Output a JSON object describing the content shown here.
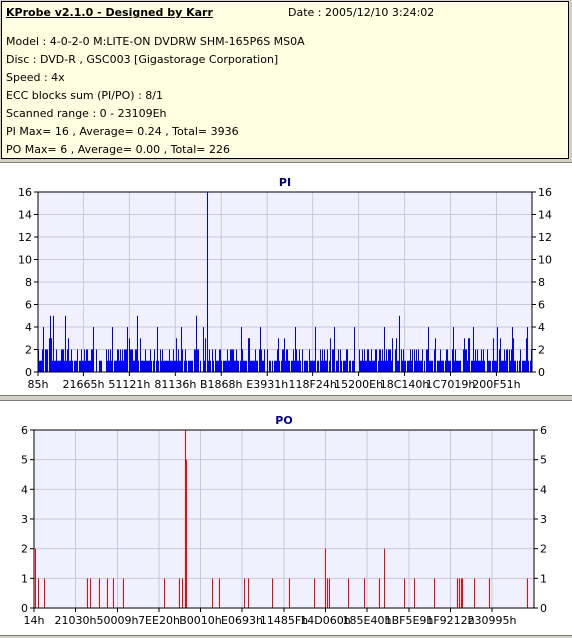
{
  "info": {
    "title": "KProbe v2.1.0 - Designed by Karr",
    "date": "Date : 2005/12/10 3:24:02",
    "lines": [
      "Model : 4-0-2-0 M:LITE-ON DVDRW SHM-165P6S MS0A",
      "Disc : DVD-R , GSC003 [Gigastorage Corporation]",
      "Speed : 4x",
      "ECC blocks sum (PI/PO) : 8/1",
      "Scanned range : 0 - 23109Eh",
      "PI Max= 16 , Average= 0.24 , Total= 3936",
      "PO Max= 6 , Average= 0.00 , Total= 226"
    ]
  },
  "chart_data": [
    {
      "type": "bar",
      "title": "PI",
      "color": "#0000ff",
      "ylim": [
        0,
        16
      ],
      "yticks": [
        0,
        2,
        4,
        6,
        8,
        10,
        12,
        14,
        16
      ],
      "xlim": [
        0,
        1000
      ],
      "xtick_labels": [
        "85h",
        "21665h",
        "51121h",
        "81136h",
        "B1868h",
        "E3931h",
        "118F24h",
        "15200Eh",
        "18C140h",
        "1C7019h",
        "200F51h"
      ],
      "xtick_positions": [
        0,
        92,
        185,
        278,
        371,
        464,
        556,
        649,
        742,
        835,
        928
      ],
      "spikes": [
        {
          "x": 343,
          "y": 16
        },
        {
          "x": 10,
          "y": 4
        },
        {
          "x": 25,
          "y": 5
        },
        {
          "x": 30,
          "y": 5
        },
        {
          "x": 55,
          "y": 5
        },
        {
          "x": 112,
          "y": 4
        },
        {
          "x": 150,
          "y": 4
        },
        {
          "x": 180,
          "y": 4
        },
        {
          "x": 200,
          "y": 5
        },
        {
          "x": 240,
          "y": 4
        },
        {
          "x": 290,
          "y": 4
        },
        {
          "x": 320,
          "y": 5
        },
        {
          "x": 335,
          "y": 4
        },
        {
          "x": 410,
          "y": 4
        },
        {
          "x": 450,
          "y": 4
        },
        {
          "x": 520,
          "y": 4
        },
        {
          "x": 560,
          "y": 4
        },
        {
          "x": 600,
          "y": 4
        },
        {
          "x": 640,
          "y": 4
        },
        {
          "x": 700,
          "y": 4
        },
        {
          "x": 731,
          "y": 5
        },
        {
          "x": 790,
          "y": 4
        },
        {
          "x": 840,
          "y": 4
        },
        {
          "x": 880,
          "y": 4
        },
        {
          "x": 930,
          "y": 4
        },
        {
          "x": 960,
          "y": 4
        },
        {
          "x": 990,
          "y": 4
        }
      ],
      "baseline_max": 3
    },
    {
      "type": "bar",
      "title": "PO",
      "color": "#ff0000",
      "ylim": [
        0,
        6
      ],
      "yticks": [
        0,
        1,
        2,
        3,
        4,
        5,
        6
      ],
      "xlim": [
        0,
        1000
      ],
      "xtick_labels": [
        "14h",
        "21030h",
        "50009h",
        "7EE20h",
        "B0010h",
        "E0693h",
        "11485Fh",
        "14D060h",
        "185E40h",
        "1BF5E9h",
        "1F9212h",
        "230995h"
      ],
      "xtick_positions": [
        0,
        83,
        167,
        250,
        333,
        416,
        500,
        583,
        666,
        750,
        833,
        916
      ],
      "bars": [
        {
          "x": 2,
          "y": 2
        },
        {
          "x": 8,
          "y": 1
        },
        {
          "x": 20,
          "y": 1
        },
        {
          "x": 105,
          "y": 1
        },
        {
          "x": 112,
          "y": 1
        },
        {
          "x": 130,
          "y": 1
        },
        {
          "x": 145,
          "y": 1
        },
        {
          "x": 158,
          "y": 1
        },
        {
          "x": 178,
          "y": 1
        },
        {
          "x": 260,
          "y": 1
        },
        {
          "x": 290,
          "y": 1
        },
        {
          "x": 296,
          "y": 1
        },
        {
          "x": 302,
          "y": 6
        },
        {
          "x": 304,
          "y": 5
        },
        {
          "x": 355,
          "y": 1
        },
        {
          "x": 370,
          "y": 1
        },
        {
          "x": 420,
          "y": 1
        },
        {
          "x": 427,
          "y": 1
        },
        {
          "x": 475,
          "y": 1
        },
        {
          "x": 510,
          "y": 1
        },
        {
          "x": 560,
          "y": 1
        },
        {
          "x": 582,
          "y": 2
        },
        {
          "x": 586,
          "y": 1
        },
        {
          "x": 590,
          "y": 1
        },
        {
          "x": 628,
          "y": 1
        },
        {
          "x": 660,
          "y": 1
        },
        {
          "x": 690,
          "y": 1
        },
        {
          "x": 700,
          "y": 2
        },
        {
          "x": 740,
          "y": 1
        },
        {
          "x": 760,
          "y": 1
        },
        {
          "x": 800,
          "y": 1
        },
        {
          "x": 845,
          "y": 1
        },
        {
          "x": 849,
          "y": 1
        },
        {
          "x": 853,
          "y": 1
        },
        {
          "x": 856,
          "y": 1
        },
        {
          "x": 880,
          "y": 1
        },
        {
          "x": 910,
          "y": 1
        },
        {
          "x": 985,
          "y": 1
        }
      ]
    }
  ]
}
